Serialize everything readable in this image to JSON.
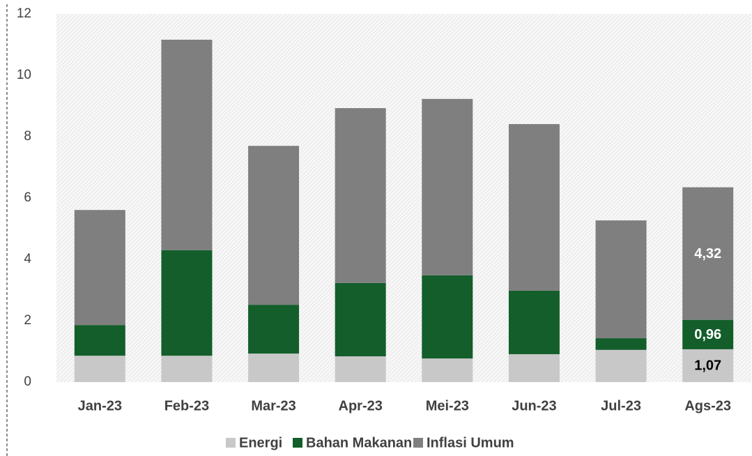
{
  "chart_data": {
    "type": "stacked_bar",
    "categories": [
      "Jan-23",
      "Feb-23",
      "Mar-23",
      "Apr-23",
      "Mei-23",
      "Jun-23",
      "Jul-23",
      "Ags-23"
    ],
    "series": [
      {
        "name": "Energi",
        "color": "#c8c8c8",
        "values": [
          0.86,
          0.86,
          0.93,
          0.84,
          0.77,
          0.91,
          1.05,
          1.07
        ],
        "value_labels": [
          null,
          null,
          null,
          null,
          null,
          null,
          null,
          "1,07"
        ]
      },
      {
        "name": "Bahan Makanan",
        "color": "#135e2b",
        "values": [
          1.0,
          3.44,
          1.59,
          2.39,
          2.71,
          2.07,
          0.38,
          0.96
        ],
        "value_labels": [
          null,
          null,
          null,
          null,
          null,
          null,
          null,
          "0,96"
        ]
      },
      {
        "name": "Inflasi Umum",
        "color": "#7f7f7f",
        "values": [
          3.75,
          6.86,
          5.18,
          5.7,
          5.75,
          5.43,
          3.84,
          4.32
        ],
        "value_labels": [
          null,
          null,
          null,
          null,
          null,
          null,
          null,
          "4,32"
        ]
      }
    ],
    "ylim": [
      0,
      12
    ],
    "yticks": [
      0,
      2,
      4,
      6,
      8,
      10,
      12
    ],
    "legend": "bottom"
  }
}
